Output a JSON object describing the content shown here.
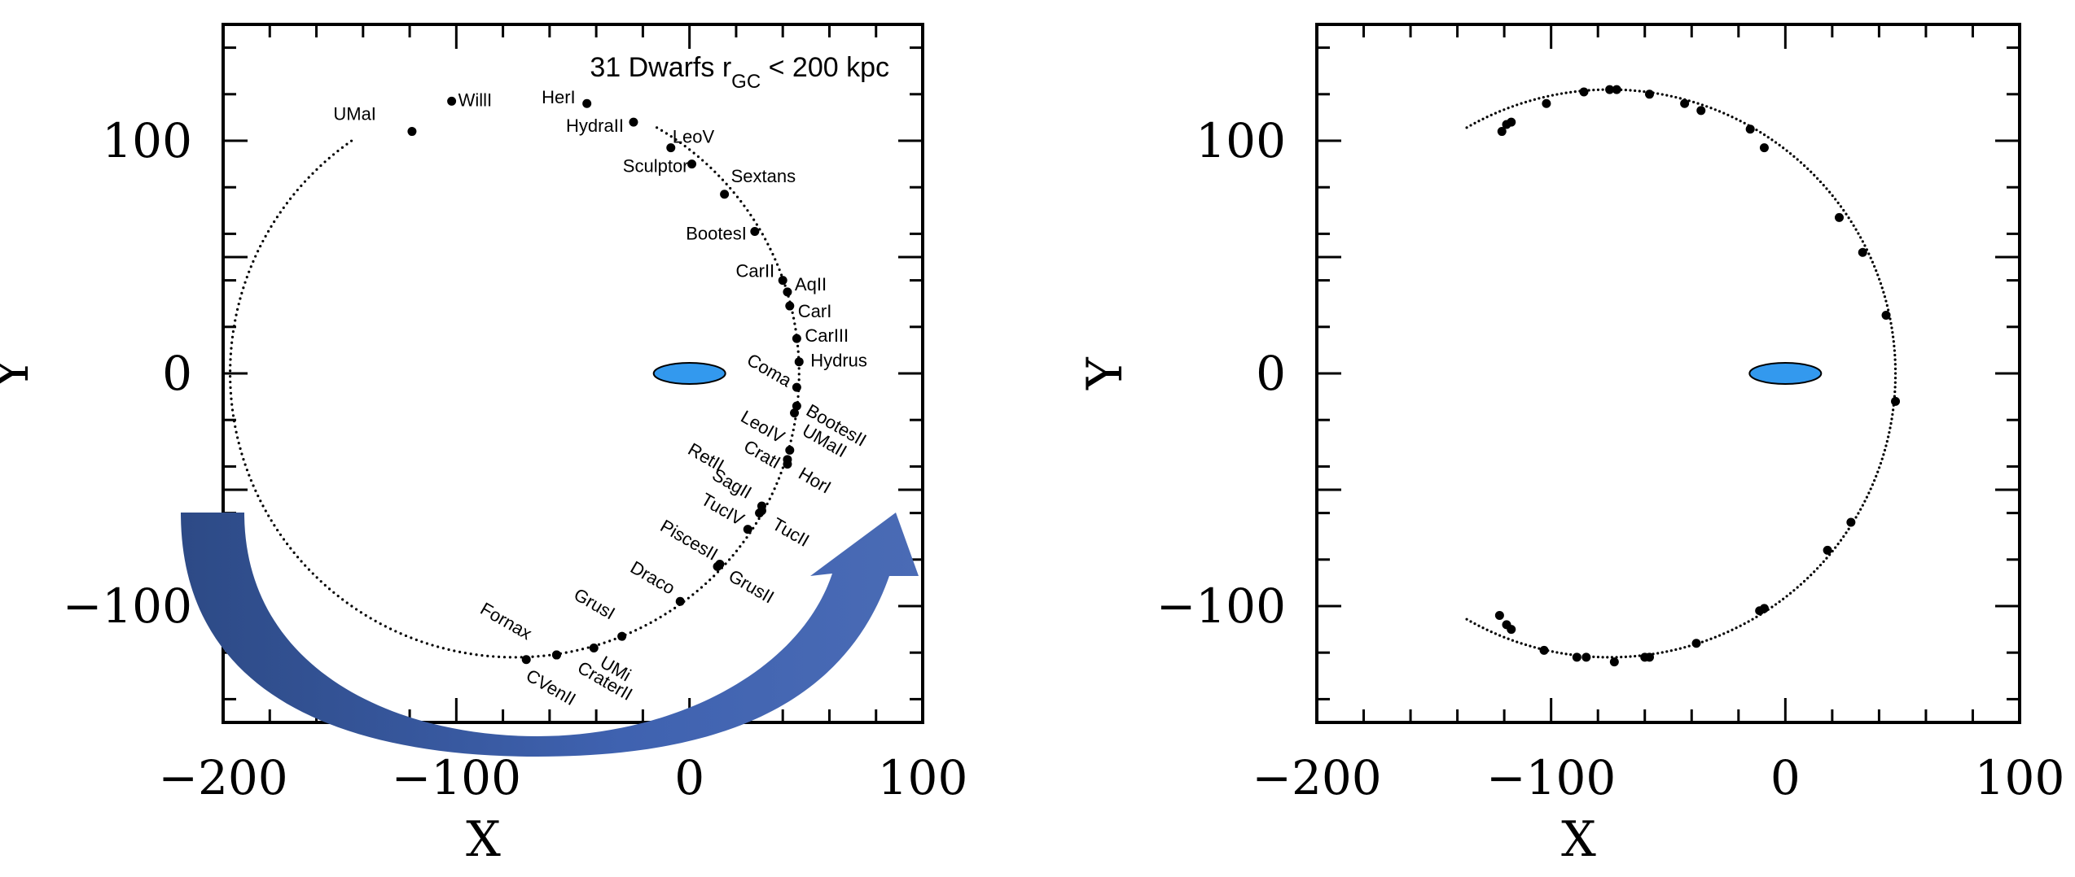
{
  "chart_data": [
    {
      "type": "scatter",
      "title": "31  Dwarfs r",
      "title_subscript": "GC",
      "title_suffix": " < 200 kpc",
      "xlabel": "X",
      "ylabel": "Y",
      "xlim": [
        -200,
        100
      ],
      "ylim": [
        -150,
        150
      ],
      "xticks": [
        "−200",
        "−100",
        "0",
        "100"
      ],
      "yticks": [
        "−100",
        "0",
        "100"
      ],
      "disk_color": "#3399ee",
      "arrow_color": "#4a6bb5",
      "orbit": {
        "cx": -75,
        "cy": 0,
        "r": 122,
        "start_deg": 60,
        "end_deg": -235
      },
      "points": [
        {
          "name": "UMaI",
          "x": -119,
          "y": 104
        },
        {
          "name": "WillI",
          "x": -102,
          "y": 117
        },
        {
          "name": "HerI",
          "x": -44,
          "y": 116
        },
        {
          "name": "HydraII",
          "x": -24,
          "y": 108
        },
        {
          "name": "LeoV",
          "x": -8,
          "y": 97
        },
        {
          "name": "Sculptor",
          "x": 1,
          "y": 90
        },
        {
          "name": "Sextans",
          "x": 15,
          "y": 77
        },
        {
          "name": "BootesI",
          "x": 28,
          "y": 61
        },
        {
          "name": "CarII",
          "x": 40,
          "y": 40
        },
        {
          "name": "AqII",
          "x": 42,
          "y": 35
        },
        {
          "name": "CarI",
          "x": 43,
          "y": 29
        },
        {
          "name": "CarIII",
          "x": 46,
          "y": 15
        },
        {
          "name": "Hydrus",
          "x": 47,
          "y": 5
        },
        {
          "name": "Coma",
          "x": 46,
          "y": -6
        },
        {
          "name": "BootesII",
          "x": 46,
          "y": -14
        },
        {
          "name": "UMaII",
          "x": 45,
          "y": -17
        },
        {
          "name": "LeoIV",
          "x": 43,
          "y": -33
        },
        {
          "name": "CratI",
          "x": 42,
          "y": -37
        },
        {
          "name": "HorI",
          "x": 42,
          "y": -39
        },
        {
          "name": "RetII",
          "x": 31,
          "y": -57
        },
        {
          "name": "SagII",
          "x": 31,
          "y": -59
        },
        {
          "name": "TucII",
          "x": 30,
          "y": -60
        },
        {
          "name": "TucIV",
          "x": 25,
          "y": -67
        },
        {
          "name": "PiscesII",
          "x": 13,
          "y": -82
        },
        {
          "name": "GrusII",
          "x": 12,
          "y": -83
        },
        {
          "name": "Draco",
          "x": -4,
          "y": -98
        },
        {
          "name": "GrusI",
          "x": -29,
          "y": -113
        },
        {
          "name": "UMi",
          "x": -41,
          "y": -118
        },
        {
          "name": "Fornax",
          "x": -57,
          "y": -121
        },
        {
          "name": "CraterII",
          "x": -57,
          "y": -121
        },
        {
          "name": "CVenII",
          "x": -70,
          "y": -123
        }
      ]
    },
    {
      "type": "scatter",
      "xlabel": "X",
      "ylabel": "Y",
      "xlim": [
        -200,
        100
      ],
      "ylim": [
        -150,
        150
      ],
      "xticks": [
        "−200",
        "−100",
        "0",
        "100"
      ],
      "yticks": [
        "−100",
        "0",
        "100"
      ],
      "disk_color": "#3399ee",
      "orbit": {
        "cx": -75,
        "cy": 0,
        "r": 122,
        "start_deg": 120,
        "end_deg": -120
      },
      "points": [
        {
          "x": -121,
          "y": 104
        },
        {
          "x": -119,
          "y": 107
        },
        {
          "x": -117,
          "y": 108
        },
        {
          "x": -102,
          "y": 116
        },
        {
          "x": -86,
          "y": 121
        },
        {
          "x": -75,
          "y": 122
        },
        {
          "x": -72,
          "y": 122
        },
        {
          "x": -58,
          "y": 120
        },
        {
          "x": -43,
          "y": 116
        },
        {
          "x": -36,
          "y": 113
        },
        {
          "x": -15,
          "y": 105
        },
        {
          "x": -9,
          "y": 97
        },
        {
          "x": 23,
          "y": 67
        },
        {
          "x": 33,
          "y": 52
        },
        {
          "x": 43,
          "y": 25
        },
        {
          "x": 47,
          "y": -12
        },
        {
          "x": 28,
          "y": -64
        },
        {
          "x": 18,
          "y": -76
        },
        {
          "x": -9,
          "y": -101
        },
        {
          "x": -11,
          "y": -102
        },
        {
          "x": -38,
          "y": -116
        },
        {
          "x": -58,
          "y": -122
        },
        {
          "x": -60,
          "y": -122
        },
        {
          "x": -73,
          "y": -124
        },
        {
          "x": -85,
          "y": -122
        },
        {
          "x": -89,
          "y": -122
        },
        {
          "x": -103,
          "y": -119
        },
        {
          "x": -117,
          "y": -110
        },
        {
          "x": -119,
          "y": -108
        },
        {
          "x": -122,
          "y": -104
        }
      ]
    }
  ]
}
